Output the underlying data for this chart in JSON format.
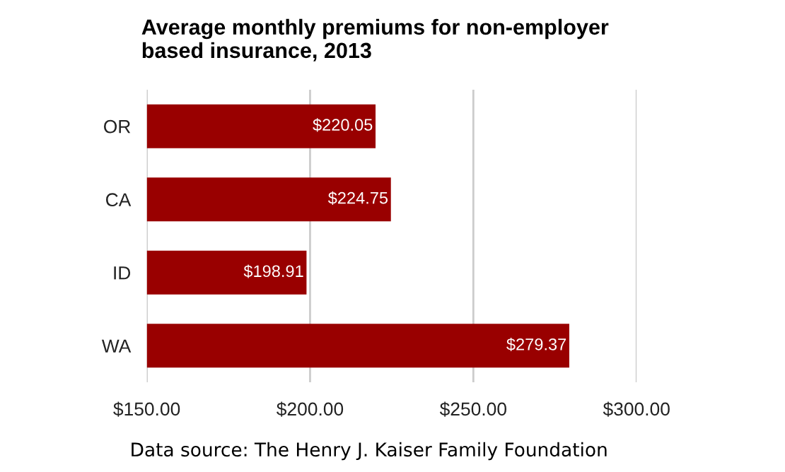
{
  "chart_data": {
    "type": "bar",
    "orientation": "horizontal",
    "title": "Average monthly premiums for non-employer\nbased insurance, 2013",
    "categories": [
      "OR",
      "CA",
      "ID",
      "WA"
    ],
    "values": [
      220.05,
      224.75,
      198.91,
      279.37
    ],
    "value_labels": [
      "$220.05",
      "$224.75",
      "$198.91",
      "$279.37"
    ],
    "color": "#990000",
    "xlim": [
      150,
      300
    ],
    "xticks": [
      {
        "value": 150,
        "label": "$150.00"
      },
      {
        "value": 200,
        "label": "$200.00"
      },
      {
        "value": 250,
        "label": "$250.00"
      },
      {
        "value": 300,
        "label": "$300.00"
      }
    ],
    "grid": "x",
    "legend": false,
    "annotations": [
      "Data source: The Henry J. Kaiser Family Foundation"
    ]
  }
}
